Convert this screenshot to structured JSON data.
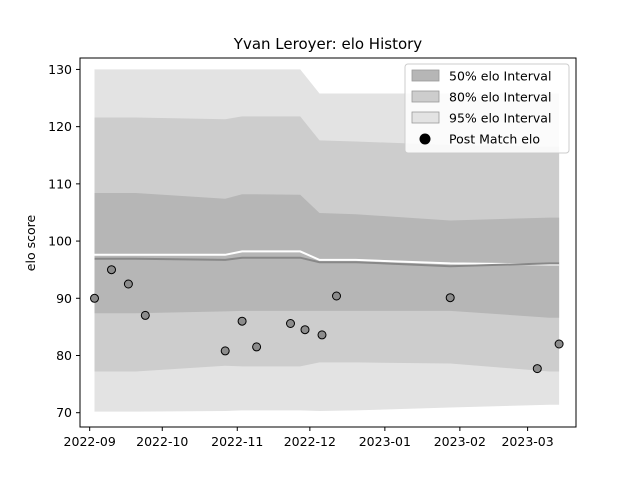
{
  "chart_data": {
    "type": "area",
    "title": "Yvan Leroyer: elo History",
    "xlabel": "",
    "ylabel": "elo score",
    "x_range": [
      "2022-08-28",
      "2023-03-21"
    ],
    "ylim": [
      67.5,
      132
    ],
    "grid": false,
    "legend_position": "top-right",
    "x_ticks": [
      "2022-09-01",
      "2022-10-01",
      "2022-11-01",
      "2022-12-01",
      "2023-01-01",
      "2023-02-01",
      "2023-03-01"
    ],
    "x_tick_labels": [
      "2022-09",
      "2022-10",
      "2022-11",
      "2022-12",
      "2023-01",
      "2023-02",
      "2023-03"
    ],
    "y_ticks": [
      70,
      80,
      90,
      100,
      110,
      120,
      130
    ],
    "band_dates": [
      "2022-09-03",
      "2022-09-20",
      "2022-10-27",
      "2022-11-03",
      "2022-11-27",
      "2022-12-05",
      "2022-12-20",
      "2023-01-28",
      "2023-03-10",
      "2023-03-14"
    ],
    "series": [
      {
        "name": "95% elo Interval",
        "color": "#e3e3e3",
        "upper": [
          130,
          130,
          130,
          130,
          130,
          125.8,
          125.8,
          125.8,
          125.8,
          125.8
        ],
        "lower": [
          70.2,
          70.2,
          70.3,
          70.4,
          70.4,
          70.3,
          70.4,
          70.9,
          71.4,
          71.4
        ]
      },
      {
        "name": "80% elo Interval",
        "color": "#cdcdcd",
        "upper": [
          121.6,
          121.6,
          121.3,
          121.8,
          121.8,
          117.6,
          117.4,
          116.8,
          116.5,
          116.5
        ],
        "lower": [
          77.2,
          77.2,
          78.2,
          78.1,
          78.1,
          78.8,
          78.8,
          78.6,
          77.2,
          77.2
        ]
      },
      {
        "name": "50% elo Interval",
        "color": "#b6b6b6",
        "upper": [
          108.4,
          108.4,
          107.4,
          108.2,
          108.1,
          104.9,
          104.7,
          103.6,
          104.1,
          104.1
        ],
        "lower": [
          87.4,
          87.4,
          87.7,
          87.8,
          87.8,
          87.8,
          87.8,
          87.8,
          86.6,
          86.6
        ]
      }
    ],
    "mean_line": {
      "dates": [
        "2022-09-03",
        "2022-09-20",
        "2022-10-27",
        "2022-11-03",
        "2022-11-27",
        "2022-12-05",
        "2022-12-20",
        "2023-01-28",
        "2023-03-10",
        "2023-03-14"
      ],
      "values": [
        96.9,
        96.9,
        96.7,
        97.1,
        97.1,
        96.3,
        96.3,
        95.6,
        96.1,
        96.1
      ],
      "color": "#888888"
    },
    "upper_white_line": {
      "dates": [
        "2022-09-03",
        "2022-09-20",
        "2022-10-27",
        "2022-11-03",
        "2022-11-27",
        "2022-12-05",
        "2022-12-20",
        "2023-01-28",
        "2023-03-10",
        "2023-03-14"
      ],
      "values": [
        97.6,
        97.6,
        97.6,
        98.2,
        98.2,
        96.7,
        96.7,
        96.1,
        95.9,
        95.9
      ],
      "color": "#ffffff"
    },
    "post_match": {
      "name": "Post Match elo",
      "dates": [
        "2022-09-03",
        "2022-09-10",
        "2022-09-17",
        "2022-09-24",
        "2022-10-27",
        "2022-11-03",
        "2022-11-09",
        "2022-11-23",
        "2022-11-29",
        "2022-12-06",
        "2022-12-12",
        "2023-01-28",
        "2023-03-05",
        "2023-03-14"
      ],
      "values": [
        90,
        95,
        92.5,
        87,
        80.8,
        86,
        81.5,
        85.6,
        84.5,
        83.6,
        90.4,
        90.1,
        77.7,
        82
      ],
      "color": "#8c8c8c"
    }
  }
}
